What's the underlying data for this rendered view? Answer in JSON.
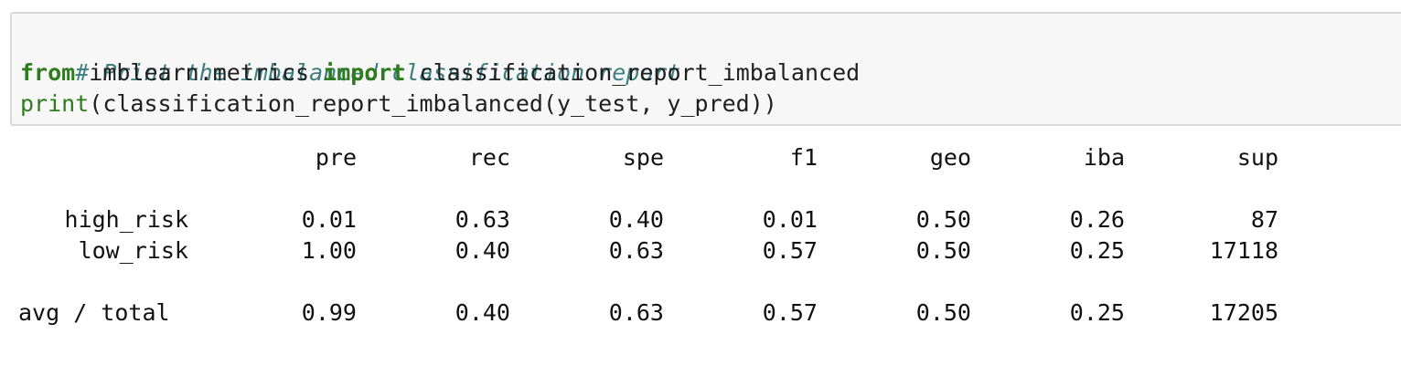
{
  "code": {
    "comment": "# Print the imbalanced classification report",
    "line2_kw1": "from",
    "line2_mod": "imblearn.metrics",
    "line2_kw2": "import",
    "line2_name": "classification_report_imbalanced",
    "line3_builtin": "print",
    "line3_rest": "(classification_report_imbalanced(y_test, y_pred))"
  },
  "report": {
    "headers": [
      "pre",
      "rec",
      "spe",
      "f1",
      "geo",
      "iba",
      "sup"
    ],
    "rows": [
      {
        "label": "high_risk",
        "values": [
          "0.01",
          "0.63",
          "0.40",
          "0.01",
          "0.50",
          "0.26",
          "87"
        ]
      },
      {
        "label": "low_risk",
        "values": [
          "1.00",
          "0.40",
          "0.63",
          "0.57",
          "0.50",
          "0.25",
          "17118"
        ]
      },
      {
        "label": "avg / total",
        "values": [
          "0.99",
          "0.40",
          "0.63",
          "0.57",
          "0.50",
          "0.25",
          "17205"
        ]
      }
    ]
  }
}
